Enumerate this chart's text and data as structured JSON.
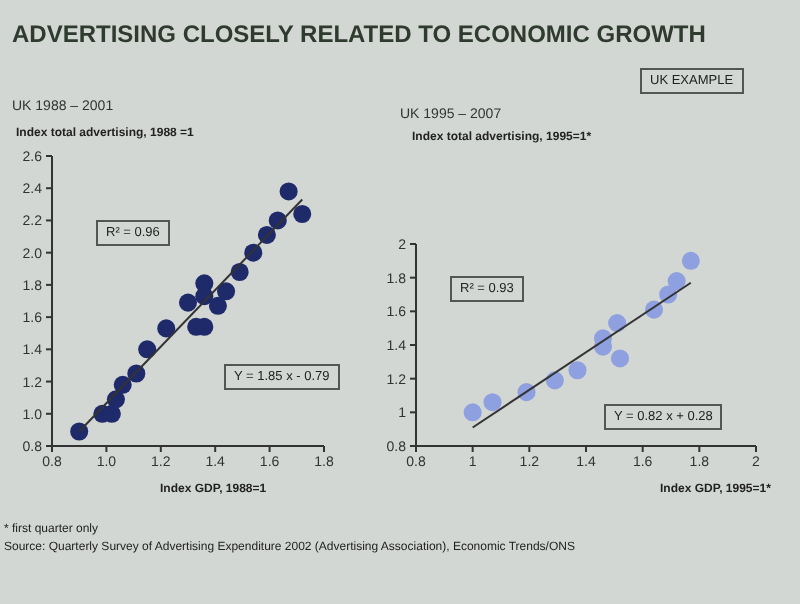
{
  "chart_data": [
    {
      "type": "scatter",
      "title": "ADVERTISING CLOSELY RELATED TO ECONOMIC GROWTH",
      "subtitle": "UK 1988 – 2001",
      "ylabel": "Index total advertising, 1988 =1",
      "xlabel": "Index GDP, 1988=1",
      "annotations": [
        "R² = 0.96",
        "Y = 1.85 x - 0.79",
        "* first quarter only",
        "Source: Quarterly Survey of Advertising Expenditure 2002 (Advertising Association), Economic Trends/ONS"
      ],
      "xlim": [
        0.8,
        1.8
      ],
      "xticks": [
        0.8,
        {
          "value": 1,
          "label": "1.0"
        },
        1.2,
        1.4,
        1.6,
        1.8
      ],
      "ylim": [
        0.8,
        2.6
      ],
      "yticks": [
        0.8,
        {
          "value": 1,
          "label": "1.0"
        },
        1.2,
        1.4,
        1.6,
        1.8,
        {
          "value": 2,
          "label": "2.0"
        },
        2.2,
        2.4,
        2.6
      ],
      "grid": false,
      "series": [
        {
          "marker": "circle",
          "color": "#1f2a6b",
          "x": [
            0.9,
            0.985,
            1.02,
            1.035,
            1.06,
            1.11,
            1.15,
            1.22,
            1.3,
            1.33,
            1.36,
            1.36,
            1.36,
            1.41,
            1.44,
            1.49,
            1.54,
            1.59,
            1.63,
            1.67,
            1.72
          ],
          "values": [
            0.89,
            1.0,
            1.0,
            1.09,
            1.18,
            1.25,
            1.4,
            1.53,
            1.69,
            1.54,
            1.54,
            1.81,
            1.73,
            1.67,
            1.76,
            1.88,
            2.0,
            2.11,
            2.2,
            2.38,
            2.24
          ]
        },
        {
          "type": "line",
          "color": "#333333",
          "x": [
            0.9,
            1.72
          ],
          "values": [
            0.89,
            2.33
          ]
        }
      ]
    },
    {
      "type": "scatter",
      "subtitle": "UK 1995 – 2007",
      "ylabel": "Index total advertising, 1995=1*",
      "xlabel": "Index GDP, 1995=1*",
      "annotations": [
        "UK EXAMPLE",
        "R² = 0.93",
        "Y = 0.82 x + 0.28"
      ],
      "xlim": [
        0.8,
        2
      ],
      "xticks": [
        0.8,
        1,
        1.2,
        1.4,
        1.6,
        1.8,
        2
      ],
      "ylim": [
        0.8,
        2
      ],
      "yticks": [
        0.8,
        1,
        1.2,
        1.4,
        1.6,
        1.8,
        2
      ],
      "grid": false,
      "series": [
        {
          "marker": "circle",
          "color": "#8fa0e0",
          "x": [
            1.0,
            1.07,
            1.19,
            1.29,
            1.37,
            1.46,
            1.46,
            1.51,
            1.52,
            1.64,
            1.69,
            1.72,
            1.77
          ],
          "values": [
            1.0,
            1.06,
            1.12,
            1.19,
            1.25,
            1.39,
            1.44,
            1.53,
            1.32,
            1.61,
            1.7,
            1.78,
            1.9
          ]
        },
        {
          "type": "line",
          "color": "#333333",
          "x": [
            1.0,
            1.77
          ],
          "values": [
            0.91,
            1.77
          ]
        }
      ]
    }
  ]
}
